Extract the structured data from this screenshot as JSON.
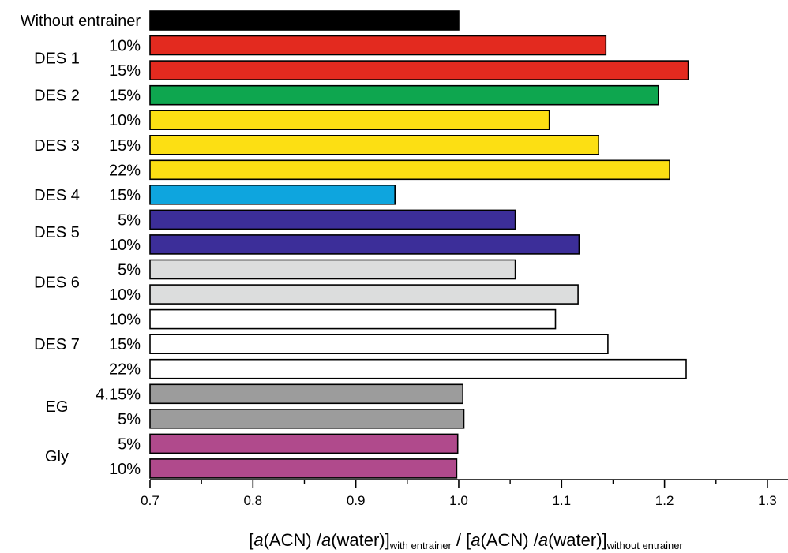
{
  "chart_data": {
    "type": "bar",
    "orientation": "horizontal",
    "xlim": [
      0.7,
      1.32
    ],
    "xticks": [
      "0.7",
      "0.8",
      "0.9",
      "1.0",
      "1.1",
      "1.2",
      "1.3"
    ],
    "xlabel": {
      "part1": "[",
      "a1": "a",
      "part2": "(ACN) /",
      "a2": "a",
      "part3": "(water)]",
      "sub1": "with entrainer",
      "part4": " / [",
      "a3": "a",
      "part5": "(ACN) /",
      "a4": "a",
      "part6": "(water)]",
      "sub2": "without entrainer"
    },
    "groups": [
      {
        "label": "Without entrainer"
      },
      {
        "label": "DES 1"
      },
      {
        "label": "DES 2"
      },
      {
        "label": "DES 3"
      },
      {
        "label": "DES 4"
      },
      {
        "label": "DES 5"
      },
      {
        "label": "DES 6"
      },
      {
        "label": "DES 7"
      },
      {
        "label": "EG"
      },
      {
        "label": "Gly"
      }
    ],
    "bars": [
      {
        "group": 0,
        "label": "",
        "value": 1.0,
        "color": "#000000"
      },
      {
        "group": 1,
        "label": "10%",
        "value": 1.143,
        "color": "#e32a1f"
      },
      {
        "group": 1,
        "label": "15%",
        "value": 1.223,
        "color": "#e32a1f"
      },
      {
        "group": 2,
        "label": "15%",
        "value": 1.194,
        "color": "#0ea64f"
      },
      {
        "group": 3,
        "label": "10%",
        "value": 1.088,
        "color": "#fcdf13"
      },
      {
        "group": 3,
        "label": "15%",
        "value": 1.136,
        "color": "#fcdf13"
      },
      {
        "group": 3,
        "label": "22%",
        "value": 1.205,
        "color": "#fcdf13"
      },
      {
        "group": 4,
        "label": "15%",
        "value": 0.938,
        "color": "#0ea5de"
      },
      {
        "group": 5,
        "label": "5%",
        "value": 1.055,
        "color": "#3c2e99"
      },
      {
        "group": 5,
        "label": "10%",
        "value": 1.117,
        "color": "#3c2e99"
      },
      {
        "group": 6,
        "label": "5%",
        "value": 1.055,
        "color": "#dcdddd"
      },
      {
        "group": 6,
        "label": "10%",
        "value": 1.116,
        "color": "#dcdddd"
      },
      {
        "group": 7,
        "label": "10%",
        "value": 1.094,
        "color": "#ffffff"
      },
      {
        "group": 7,
        "label": "15%",
        "value": 1.145,
        "color": "#ffffff"
      },
      {
        "group": 7,
        "label": "22%",
        "value": 1.221,
        "color": "#ffffff"
      },
      {
        "group": 8,
        "label": "4.15%",
        "value": 1.004,
        "color": "#9c9c9c"
      },
      {
        "group": 8,
        "label": "5%",
        "value": 1.005,
        "color": "#9c9c9c"
      },
      {
        "group": 9,
        "label": "5%",
        "value": 0.999,
        "color": "#b04a8c"
      },
      {
        "group": 9,
        "label": "10%",
        "value": 0.998,
        "color": "#b04a8c"
      }
    ]
  }
}
